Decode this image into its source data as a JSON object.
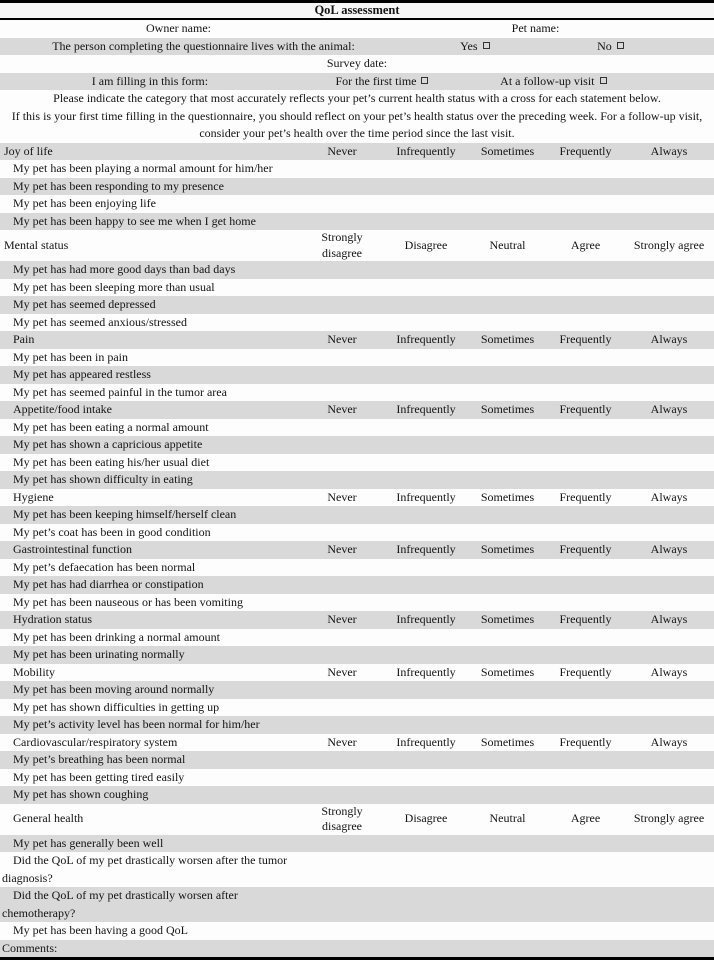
{
  "table": {
    "title": "QoL assessment",
    "header": {
      "owner_label": "Owner name:",
      "pet_label": "Pet name:",
      "lives_with_label": "The person completing the questionnaire lives with the animal:",
      "yes_label": "Yes",
      "no_label": "No",
      "survey_date_label": "Survey date:",
      "filling_label": "I am filling in this form:",
      "first_time_label": "For the first time",
      "follow_up_label": "At a follow-up visit",
      "instruction_1": "Please indicate the category that most accurately reflects your pet’s current health status with a cross for each statement below.",
      "instruction_2": "If this is your first time filling in the questionnaire, you should reflect on your pet’s health status over the preceding week. For a follow-up visit, consider your pet’s health over the time period since the last visit."
    },
    "sections": [
      {
        "title": "Joy of life",
        "flush_left": true,
        "scale": [
          "Never",
          "Infrequently",
          "Sometimes",
          "Frequently",
          "Always"
        ],
        "items": [
          "My pet has been playing a normal amount for him/her",
          "My pet has been responding to my presence",
          "My pet has been enjoying life",
          "My pet has been happy to see me when I get home"
        ]
      },
      {
        "title": "Mental status",
        "flush_left": true,
        "scale": [
          "Strongly disagree",
          "Disagree",
          "Neutral",
          "Agree",
          "Strongly agree"
        ],
        "items": [
          "My pet has had more good days than bad days",
          "My pet has been sleeping more than usual",
          "My pet has seemed depressed",
          "My pet has seemed anxious/stressed"
        ]
      },
      {
        "title": "Pain",
        "flush_left": false,
        "scale": [
          "Never",
          "Infrequently",
          "Sometimes",
          "Frequently",
          "Always"
        ],
        "items": [
          "My pet has been in pain",
          "My pet has appeared restless",
          "My pet has seemed painful in the tumor area"
        ]
      },
      {
        "title": "Appetite/food intake",
        "flush_left": false,
        "scale": [
          "Never",
          "Infrequently",
          "Sometimes",
          "Frequently",
          "Always"
        ],
        "items": [
          "My pet has been eating a normal amount",
          "My pet has shown a capricious appetite",
          "My pet has been eating his/her usual diet",
          "My pet has shown difficulty in eating"
        ]
      },
      {
        "title": "Hygiene",
        "flush_left": false,
        "scale": [
          "Never",
          "Infrequently",
          "Sometimes",
          "Frequently",
          "Always"
        ],
        "items": [
          "My pet has been keeping himself/herself clean",
          "My pet’s coat has been in good condition"
        ]
      },
      {
        "title": "Gastrointestinal function",
        "flush_left": false,
        "scale": [
          "Never",
          "Infrequently",
          "Sometimes",
          "Frequently",
          "Always"
        ],
        "items": [
          "My pet’s defaecation has been normal",
          "My pet has had diarrhea or constipation",
          "My pet has been nauseous or has been vomiting"
        ]
      },
      {
        "title": "Hydration status",
        "flush_left": false,
        "scale": [
          "Never",
          "Infrequently",
          "Sometimes",
          "Frequently",
          "Always"
        ],
        "items": [
          "My pet has been drinking a normal amount",
          "My pet has been urinating normally"
        ]
      },
      {
        "title": "Mobility",
        "flush_left": false,
        "scale": [
          "Never",
          "Infrequently",
          "Sometimes",
          "Frequently",
          "Always"
        ],
        "items": [
          "My pet has been moving around normally",
          "My pet has shown difficulties in getting up",
          "My pet’s activity level has been normal for him/her"
        ]
      },
      {
        "title": "Cardiovascular/respiratory system",
        "flush_left": false,
        "scale": [
          "Never",
          "Infrequently",
          "Sometimes",
          "Frequently",
          "Always"
        ],
        "items": [
          "My pet’s breathing has been normal",
          "My pet has been getting tired easily",
          "My pet has shown coughing"
        ]
      },
      {
        "title": "General health",
        "flush_left": false,
        "scale": [
          "Strongly disagree",
          "Disagree",
          "Neutral",
          "Agree",
          "Strongly agree"
        ],
        "items": [
          "My pet has generally been well",
          "Did the QoL of my pet drastically worsen after the tumor diagnosis?",
          "Did the QoL of my pet drastically worsen after chemotherapy?",
          "My pet has been having a good QoL"
        ]
      }
    ],
    "comments_label": "Comments:",
    "colors": {
      "row_shade": "#d9d9d9",
      "border": "#000000"
    }
  }
}
